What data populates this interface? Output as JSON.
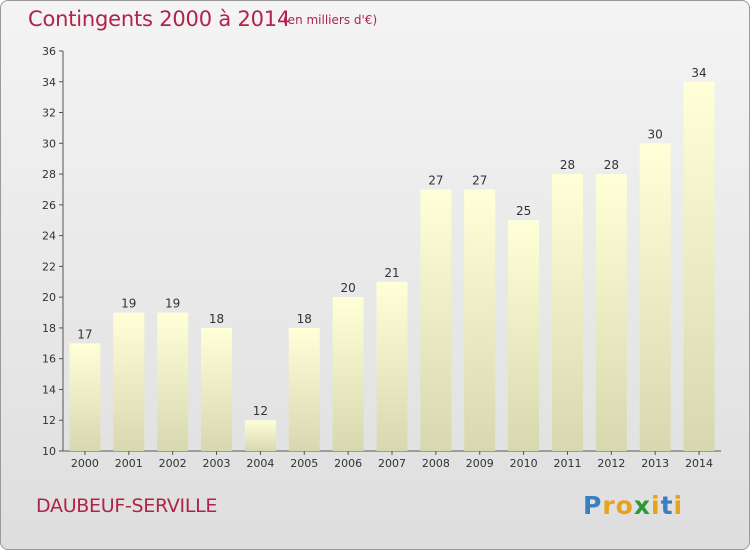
{
  "header": {
    "title": "Contingents 2000 à 2014",
    "subtitle": "(en milliers d'€)"
  },
  "footer": {
    "commune": "DAUBEUF-SERVILLE",
    "logo": "Proxiti"
  },
  "colors": {
    "title": "#b0234a",
    "bar_top": "#ffffd8",
    "bar_bottom": "#d8d8b0"
  },
  "chart_data": {
    "type": "bar",
    "title": "Contingents 2000 à 2014",
    "subtitle": "(en milliers d'€)",
    "categories": [
      "2000",
      "2001",
      "2002",
      "2003",
      "2004",
      "2005",
      "2006",
      "2007",
      "2008",
      "2009",
      "2010",
      "2011",
      "2012",
      "2013",
      "2014"
    ],
    "values": [
      17,
      19,
      19,
      18,
      12,
      18,
      20,
      21,
      27,
      27,
      25,
      28,
      28,
      30,
      34
    ],
    "ylim": [
      10,
      36
    ],
    "yticks": [
      10,
      12,
      14,
      16,
      18,
      20,
      22,
      24,
      26,
      28,
      30,
      32,
      34,
      36
    ],
    "grid": false,
    "legend": "none"
  }
}
